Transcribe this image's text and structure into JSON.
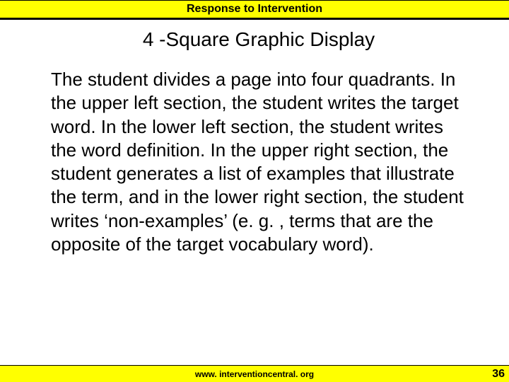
{
  "header": {
    "title": "Response to Intervention",
    "bg_color": "#ffff00",
    "border_color": "#000000",
    "font_size": 16
  },
  "slide": {
    "title": "4 -Square Graphic Display",
    "title_font_size": 28,
    "body": "The student divides a page into four quadrants. In the upper left section, the student writes the target word. In the lower left section, the student writes the word definition. In the upper right section, the student generates a list of examples that illustrate the term, and in the lower right section, the student writes ‘non-examples’ (e. g. , terms that are the opposite of the target vocabulary word).",
    "body_font_size": 26,
    "text_color": "#000000",
    "bg_color": "#ffffff"
  },
  "footer": {
    "text": "www. interventioncentral. org",
    "bg_color": "#ffff00",
    "font_size": 12,
    "page_number": "36",
    "page_number_font_size": 16
  }
}
